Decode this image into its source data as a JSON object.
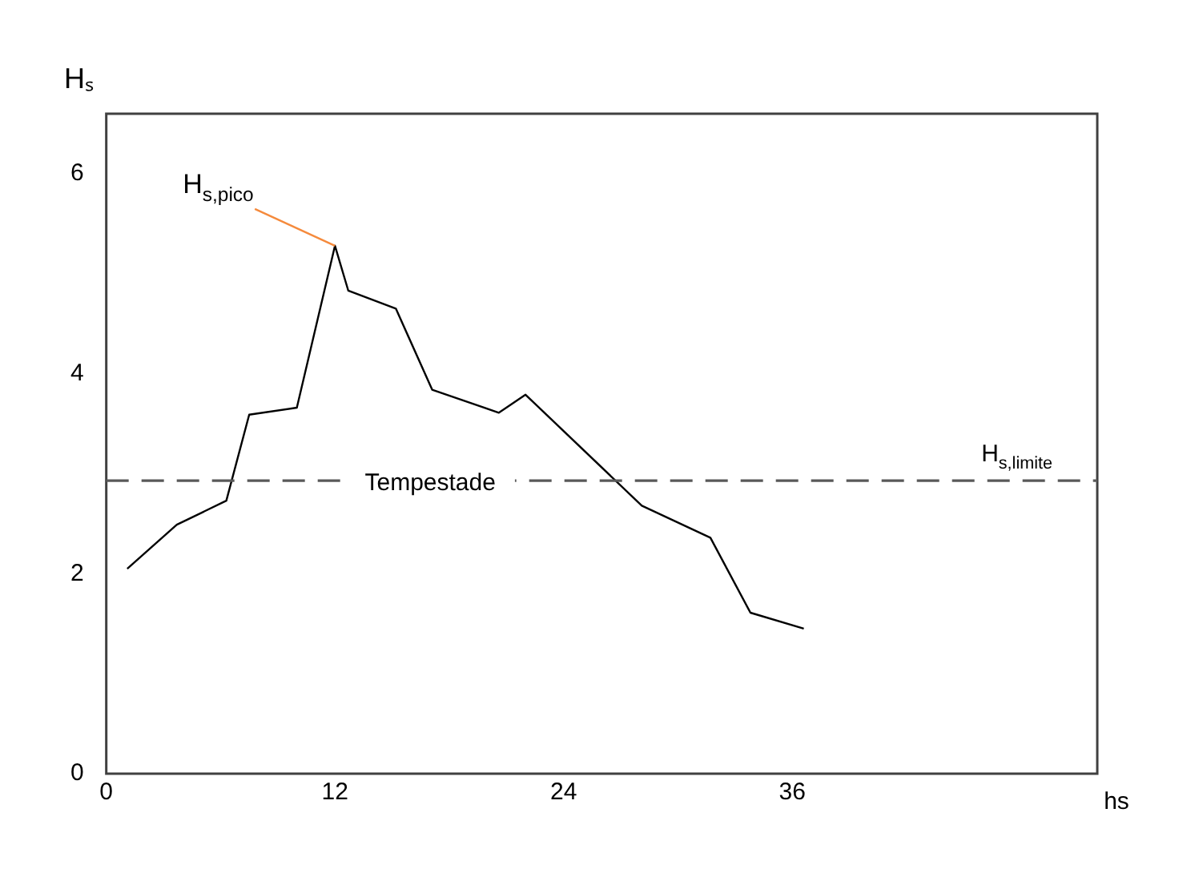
{
  "chart_data": {
    "type": "line",
    "ylabel": "Hₛ",
    "xlabel": "hs",
    "x": [
      1.1,
      3.7,
      6.3,
      7.5,
      10,
      12,
      12.7,
      15.2,
      17.1,
      20.6,
      22,
      28.1,
      31.7,
      33.8,
      36.6
    ],
    "series": [
      {
        "color": "#000000",
        "values": [
          2.05,
          2.49,
          2.73,
          3.59,
          3.66,
          5.28,
          4.83,
          4.65,
          3.84,
          3.61,
          3.79,
          2.68,
          2.36,
          1.61,
          1.45
        ]
      }
    ],
    "xlim": [
      0,
      52
    ],
    "xticks": [
      0,
      12,
      24,
      36
    ],
    "ylim": [
      0,
      6.6
    ],
    "yticks": [
      0,
      2,
      4,
      6
    ],
    "ref_lines": [
      {
        "axis": "y",
        "value": 2.93,
        "label": "H$_{s,limite}$",
        "color": "#595959",
        "line_style": "dashed"
      }
    ],
    "annotations": [
      {
        "text": "Tempestade",
        "x": 17,
        "y": 2.93
      },
      {
        "text": "H$_{s,pico}$",
        "x": 12,
        "y": 5.28
      }
    ],
    "grid": false,
    "legend": false,
    "marker": "none",
    "line_style": "solid"
  }
}
